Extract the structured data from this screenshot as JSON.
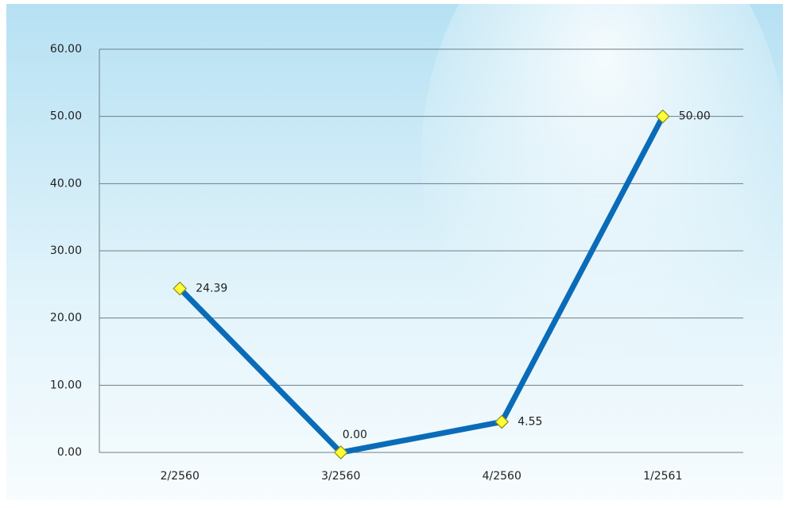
{
  "chart_data": {
    "type": "line",
    "categories": [
      "2/2560",
      "3/2560",
      "4/2560",
      "1/2561"
    ],
    "series": [
      {
        "color": "#0a6cb8",
        "marker_color": "#ffff33",
        "values": [
          24.39,
          0,
          4.55,
          50
        ],
        "value_labels": [
          "24.39",
          "0.00",
          "4.55",
          "50.00"
        ]
      }
    ],
    "ylim": [
      0,
      60
    ],
    "yticks": [
      {
        "value": 0,
        "label": "0.00"
      },
      {
        "value": 10,
        "label": "10.00"
      },
      {
        "value": 20,
        "label": "20.00"
      },
      {
        "value": 30,
        "label": "30.00"
      },
      {
        "value": 40,
        "label": "40.00"
      },
      {
        "value": 50,
        "label": "50.00"
      },
      {
        "value": 60,
        "label": "60.00"
      }
    ],
    "grid": true
  }
}
